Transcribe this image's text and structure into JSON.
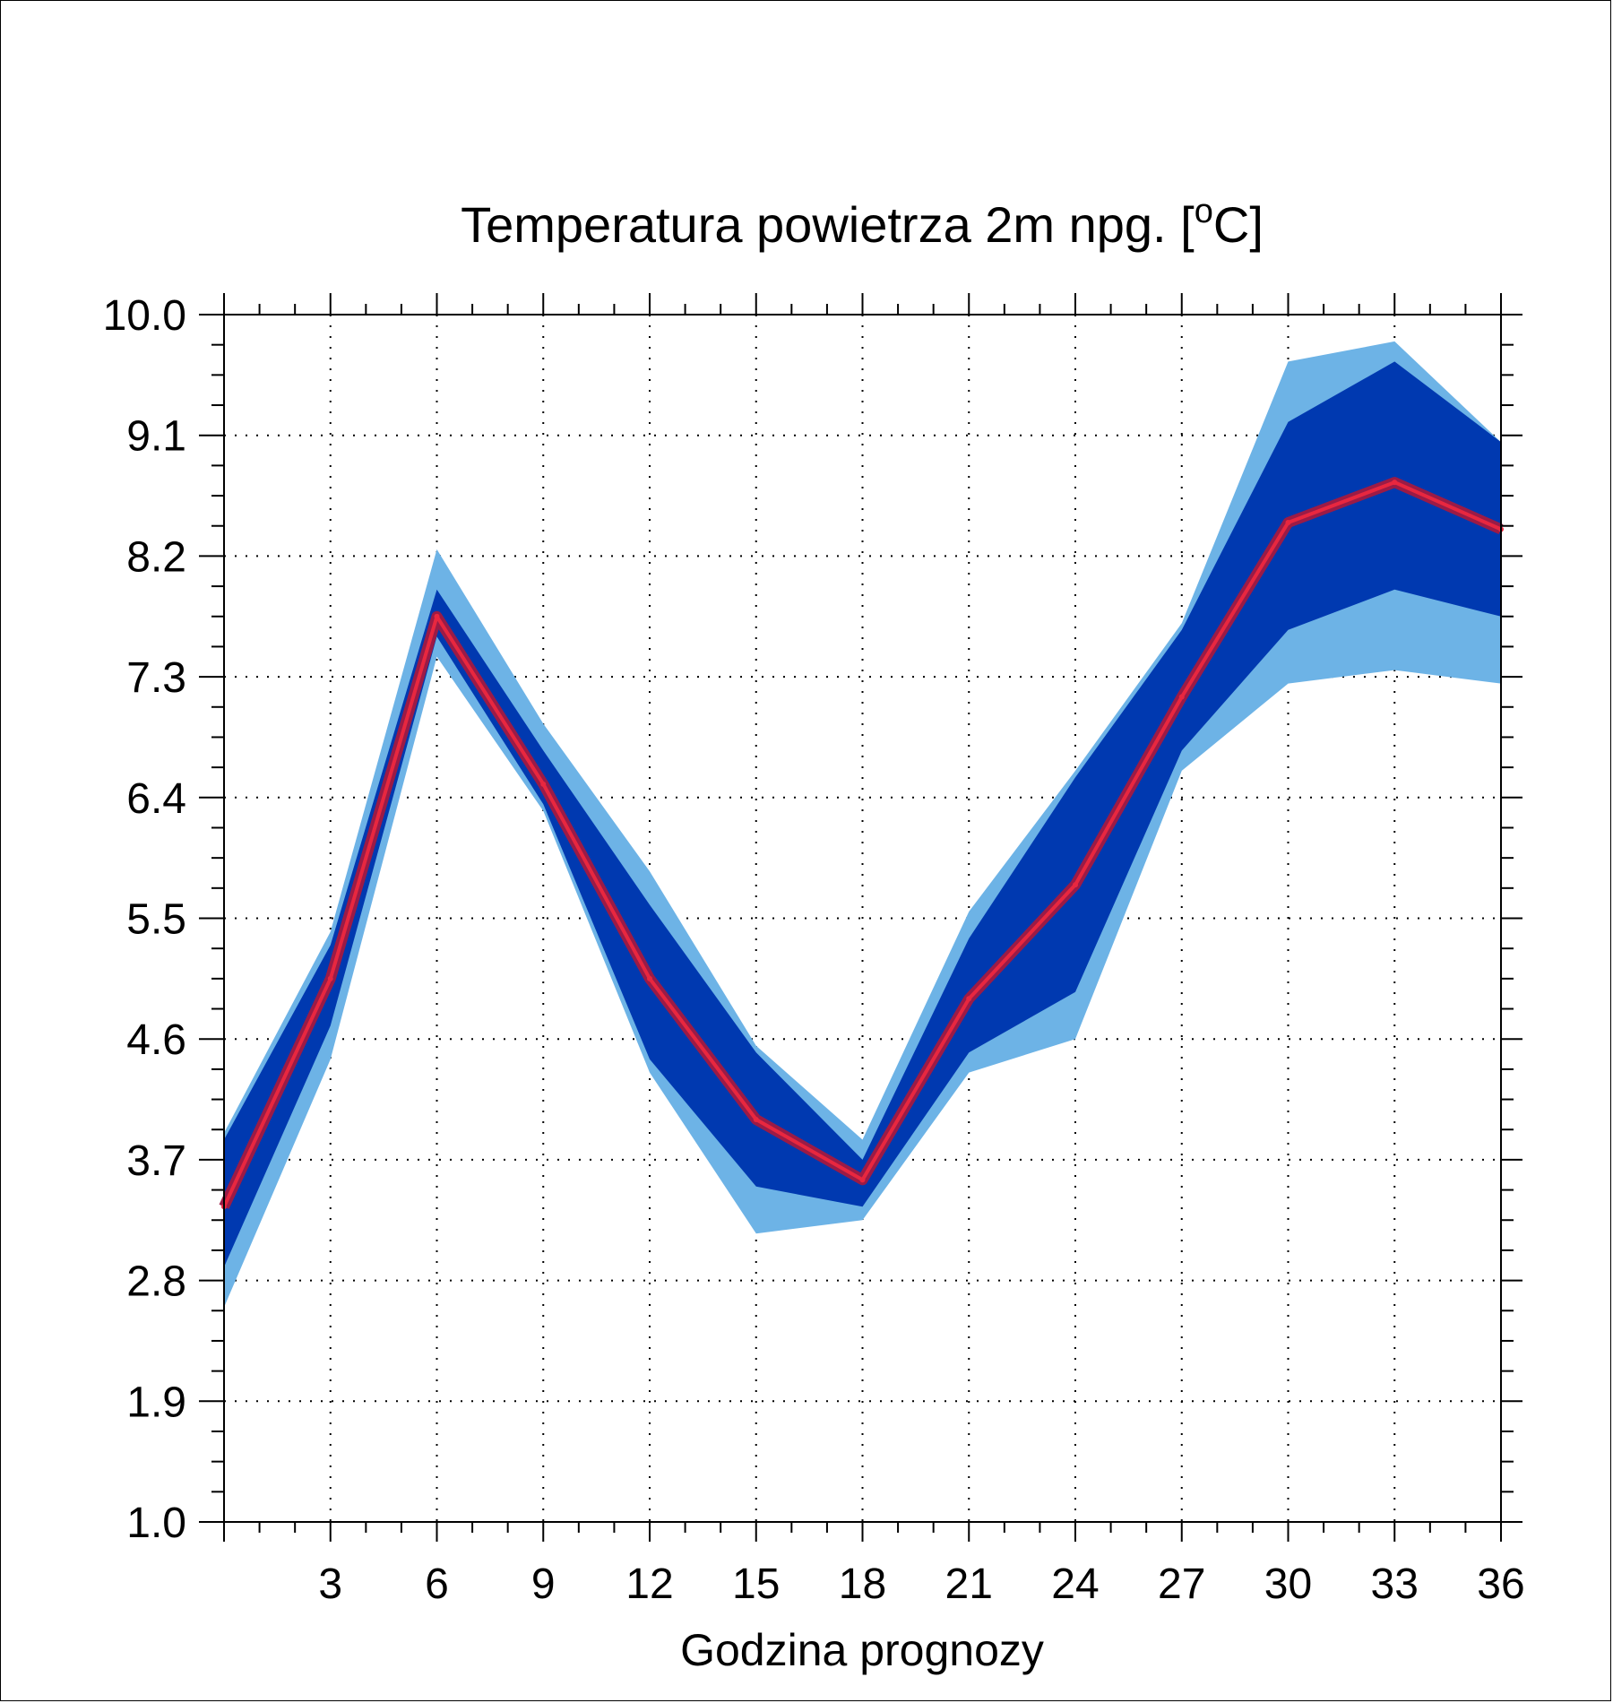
{
  "chart_data": {
    "type": "area",
    "title": "Temperatura powietrza 2m npg. [",
    "title_sup": "o",
    "title_end": "C]",
    "xlabel": "Godzina prognozy",
    "ylabel": "",
    "xlim": [
      0,
      36
    ],
    "ylim": [
      1.0,
      10.0
    ],
    "y_ticks": [
      "1.0",
      "1.9",
      "2.8",
      "3.7",
      "4.6",
      "5.5",
      "6.4",
      "7.3",
      "8.2",
      "9.1",
      "10.0"
    ],
    "x_ticks": [
      "3",
      "6",
      "9",
      "12",
      "15",
      "18",
      "21",
      "24",
      "27",
      "30",
      "33",
      "36"
    ],
    "grid": "dotted",
    "x": [
      0,
      3,
      6,
      9,
      12,
      15,
      18,
      21,
      24,
      27,
      30,
      33,
      36
    ],
    "series": [
      {
        "role": "outer-band-upper",
        "values": [
          3.9,
          5.4,
          8.25,
          6.95,
          5.85,
          4.55,
          3.85,
          5.55,
          6.6,
          7.7,
          9.65,
          9.8,
          9.05
        ]
      },
      {
        "role": "inner-band-upper",
        "values": [
          3.85,
          5.3,
          7.95,
          6.75,
          5.6,
          4.5,
          3.7,
          5.35,
          6.55,
          7.65,
          9.2,
          9.65,
          9.05
        ]
      },
      {
        "role": "median",
        "values": [
          3.35,
          5.05,
          7.75,
          6.5,
          5.05,
          4.0,
          3.55,
          4.9,
          5.75,
          7.15,
          8.45,
          8.75,
          8.4
        ]
      },
      {
        "role": "inner-band-lower",
        "values": [
          2.9,
          4.7,
          7.6,
          6.35,
          4.45,
          3.5,
          3.35,
          4.5,
          4.95,
          6.75,
          7.65,
          7.95,
          7.75
        ]
      },
      {
        "role": "outer-band-lower",
        "values": [
          2.6,
          4.45,
          7.45,
          6.3,
          4.35,
          3.15,
          3.25,
          4.35,
          4.6,
          6.6,
          7.25,
          7.35,
          7.25
        ]
      }
    ],
    "colors": {
      "outer_band": "#6db3e6",
      "inner_band": "#0039b0",
      "median_outer": "#9b1b46",
      "median_inner": "#e8273f"
    }
  }
}
